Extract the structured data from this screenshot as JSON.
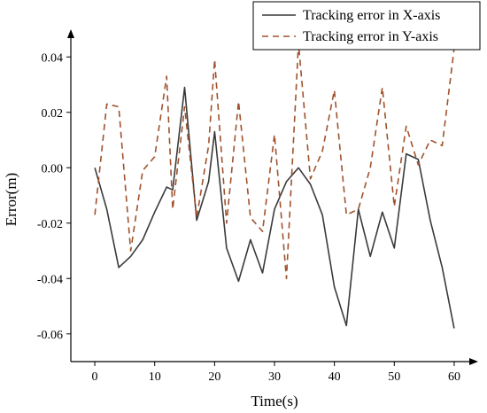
{
  "chart_data": {
    "type": "line",
    "xlabel": "Time(s)",
    "ylabel": "Error(m)",
    "xlim": [
      -4,
      64
    ],
    "ylim": [
      -0.07,
      0.05
    ],
    "x_ticks": [
      0,
      10,
      20,
      30,
      40,
      50,
      60
    ],
    "y_ticks": [
      -0.06,
      -0.04,
      -0.02,
      0.0,
      0.02,
      0.04
    ],
    "y_tick_labels": [
      "-0.06",
      "-0.04",
      "-0.02",
      "0.00",
      "0.02",
      "0.04"
    ],
    "grid": false,
    "legend_position": "top-right",
    "series": [
      {
        "name": "Tracking error in X-axis",
        "style": "solid",
        "color": "#3a3a3a",
        "x": [
          0,
          2,
          4,
          6,
          8,
          10,
          12,
          13,
          15,
          17,
          19,
          20,
          22,
          24,
          26,
          28,
          30,
          32,
          34,
          36,
          38,
          40,
          42,
          44,
          46,
          48,
          50,
          52,
          54,
          56,
          58,
          60
        ],
        "y": [
          0.0,
          -0.015,
          -0.036,
          -0.032,
          -0.026,
          -0.016,
          -0.007,
          -0.008,
          0.029,
          -0.019,
          -0.005,
          0.013,
          -0.029,
          -0.041,
          -0.026,
          -0.038,
          -0.015,
          -0.005,
          0.0,
          -0.006,
          -0.017,
          -0.043,
          -0.057,
          -0.015,
          -0.032,
          -0.016,
          -0.029,
          0.005,
          0.003,
          -0.019,
          -0.036,
          -0.058
        ]
      },
      {
        "name": "Tracking error in Y-axis",
        "style": "dashed",
        "color": "#a0522d",
        "x": [
          0,
          2,
          4,
          6,
          8,
          10,
          12,
          13,
          15,
          17,
          19,
          20,
          22,
          24,
          26,
          28,
          30,
          32,
          34,
          36,
          38,
          40,
          42,
          44,
          46,
          48,
          50,
          52,
          54,
          56,
          58,
          60
        ],
        "y": [
          -0.017,
          0.023,
          0.022,
          -0.03,
          -0.001,
          0.004,
          0.033,
          -0.015,
          0.022,
          -0.018,
          0.008,
          0.039,
          -0.02,
          0.024,
          -0.018,
          -0.023,
          0.012,
          -0.04,
          0.045,
          -0.004,
          0.006,
          0.028,
          -0.017,
          -0.015,
          0.0,
          0.029,
          -0.014,
          0.015,
          0.001,
          0.01,
          0.008,
          0.043
        ]
      }
    ]
  }
}
